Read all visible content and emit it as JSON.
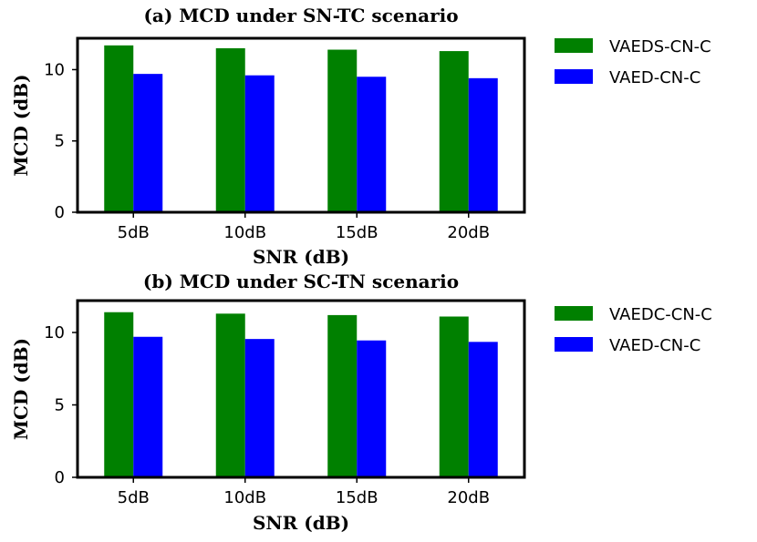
{
  "chart_data": [
    {
      "type": "bar",
      "title": "(a) MCD under SN-TC scenario",
      "xlabel": "SNR (dB)",
      "ylabel": "MCD (dB)",
      "categories": [
        "5dB",
        "10dB",
        "15dB",
        "20dB"
      ],
      "ylim": [
        0,
        12.2
      ],
      "yticks": [
        0,
        5,
        10
      ],
      "series": [
        {
          "name": "VAEDS-CN-C",
          "color": "#008000",
          "values": [
            11.7,
            11.5,
            11.4,
            11.3
          ]
        },
        {
          "name": "VAED-CN-C",
          "color": "#0000ff",
          "values": [
            9.7,
            9.6,
            9.5,
            9.4
          ]
        }
      ],
      "legend": "outside-right-top"
    },
    {
      "type": "bar",
      "title": "(b) MCD under SC-TN scenario",
      "xlabel": "SNR (dB)",
      "ylabel": "MCD (dB)",
      "categories": [
        "5dB",
        "10dB",
        "15dB",
        "20dB"
      ],
      "ylim": [
        0,
        12.2
      ],
      "yticks": [
        0,
        5,
        10
      ],
      "series": [
        {
          "name": "VAEDC-CN-C",
          "color": "#008000",
          "values": [
            11.4,
            11.3,
            11.2,
            11.1
          ]
        },
        {
          "name": "VAED-CN-C",
          "color": "#0000ff",
          "values": [
            9.7,
            9.55,
            9.45,
            9.35
          ]
        }
      ],
      "legend": "outside-right-top"
    }
  ]
}
